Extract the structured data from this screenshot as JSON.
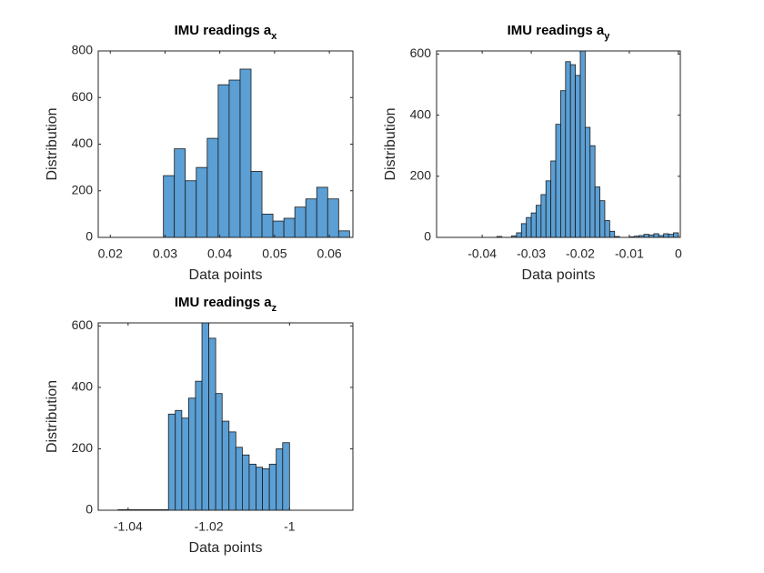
{
  "chart_data": [
    {
      "type": "histogram",
      "title": "IMU readings a",
      "title_subscript": "x",
      "xlabel": "Data points",
      "ylabel": "Distribution",
      "color": "#5b9fd4",
      "edgecolor": "#1a1a1a",
      "bins": [
        0.0297,
        0.0317,
        0.0337,
        0.0357,
        0.0377,
        0.0397,
        0.0417,
        0.0437,
        0.0457,
        0.0477,
        0.0497,
        0.0517,
        0.0537,
        0.0557,
        0.0577,
        0.0597,
        0.0617,
        0.0637
      ],
      "values": [
        265,
        380,
        243,
        300,
        425,
        655,
        675,
        722,
        283,
        100,
        70,
        82,
        130,
        165,
        215,
        165,
        28
      ],
      "xlim": [
        0.0178,
        0.0643
      ],
      "xticks": [
        0.02,
        0.03,
        0.04,
        0.05,
        0.06
      ],
      "ylim": [
        0,
        800
      ],
      "yticks": [
        0,
        200,
        400,
        600,
        800
      ]
    },
    {
      "type": "histogram",
      "title": "IMU readings a",
      "title_subscript": "y",
      "xlabel": "Data points",
      "ylabel": "Distribution",
      "color": "#5b9fd4",
      "edgecolor": "#1a1a1a",
      "bins": [
        -0.037,
        -0.036,
        -0.035,
        -0.034,
        -0.033,
        -0.032,
        -0.031,
        -0.03,
        -0.029,
        -0.028,
        -0.027,
        -0.026,
        -0.025,
        -0.024,
        -0.023,
        -0.022,
        -0.021,
        -0.02,
        -0.019,
        -0.018,
        -0.017,
        -0.016,
        -0.015,
        -0.014,
        -0.013,
        -0.012,
        -0.011,
        -0.01,
        -0.009,
        -0.008,
        -0.007,
        -0.006,
        -0.005,
        -0.004,
        -0.003,
        -0.002,
        -0.001,
        0
      ],
      "values": [
        3,
        0,
        0,
        5,
        15,
        45,
        65,
        80,
        105,
        140,
        185,
        250,
        370,
        480,
        575,
        565,
        530,
        610,
        360,
        300,
        165,
        120,
        55,
        20,
        3,
        0,
        0,
        2,
        4,
        6,
        10,
        8,
        12,
        6,
        12,
        10,
        15
      ],
      "xlim": [
        -0.0493,
        0.0004
      ],
      "xticks": [
        -0.04,
        -0.03,
        -0.02,
        -0.01,
        0
      ],
      "ylim": [
        0,
        610
      ],
      "yticks": [
        0,
        200,
        400,
        600
      ]
    },
    {
      "type": "histogram",
      "title": "IMU readings a",
      "title_subscript": "z",
      "xlabel": "Data points",
      "ylabel": "Distribution",
      "color": "#5b9fd4",
      "edgecolor": "#1a1a1a",
      "bins": [
        -1.0425,
        -1.03,
        -1.0283,
        -1.0267,
        -1.025,
        -1.0233,
        -1.0217,
        -1.02,
        -1.0183,
        -1.0167,
        -1.015,
        -1.0133,
        -1.0117,
        -1.01,
        -1.0083,
        -1.0067,
        -1.005,
        -1.0033,
        -1.0017,
        -1.0
      ],
      "values": [
        2,
        313,
        325,
        300,
        365,
        420,
        610,
        560,
        380,
        290,
        255,
        205,
        180,
        150,
        140,
        135,
        150,
        200,
        220
      ],
      "xlim": [
        -1.0474,
        -0.9843
      ],
      "xticks": [
        -1.04,
        -1.02,
        -1
      ],
      "ylim": [
        0,
        610
      ],
      "yticks": [
        0,
        200,
        400,
        600
      ]
    }
  ]
}
